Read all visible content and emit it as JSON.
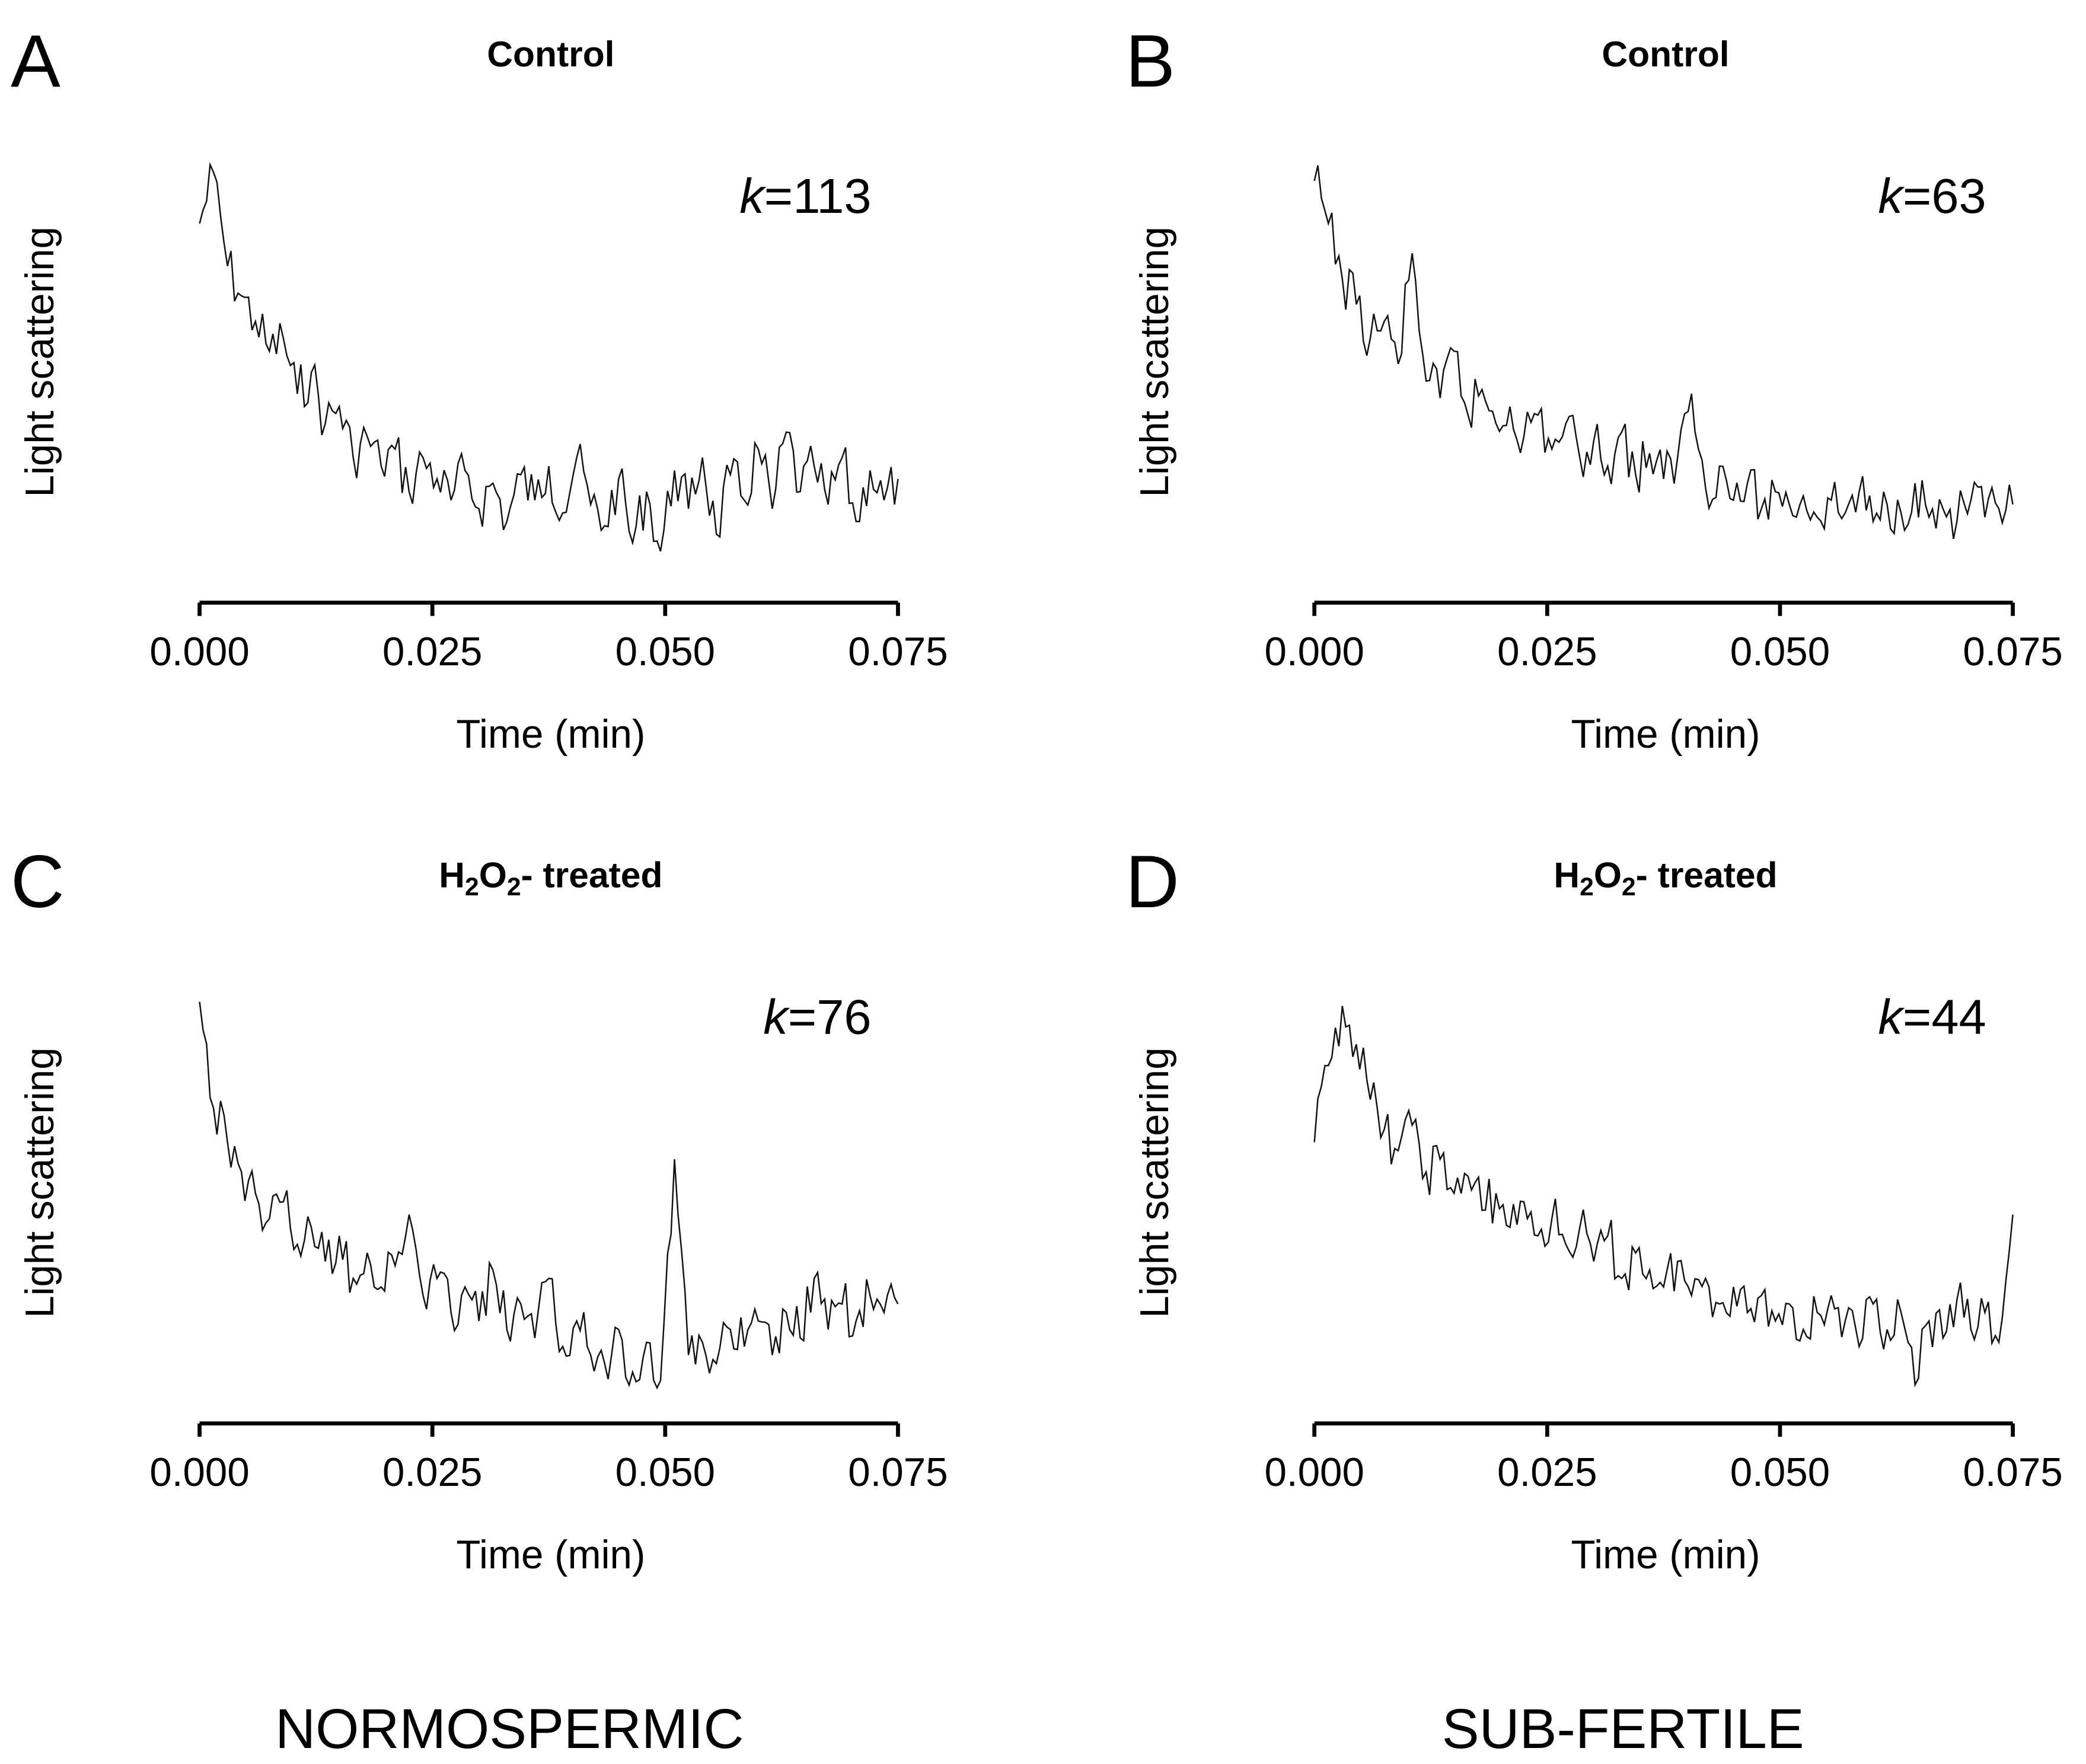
{
  "groups": [
    "NORMOSPERMIC",
    "SUB-FERTILE"
  ],
  "chart_data": [
    {
      "type": "line",
      "panel": "A",
      "group": "NORMOSPERMIC",
      "title": {
        "text": "Control"
      },
      "annotation": {
        "k_label": "k",
        "k_value": "=113"
      },
      "xlabel": "Time (min)",
      "ylabel": "Light scattering",
      "xlim": [
        0,
        0.075
      ],
      "ylim": [
        0,
        1
      ],
      "xticks": [
        "0.000",
        "0.025",
        "0.050",
        "0.075"
      ],
      "values": [
        0.85,
        0.97,
        0.75,
        0.68,
        0.62,
        0.55,
        0.58,
        0.45,
        0.5,
        0.38,
        0.42,
        0.3,
        0.35,
        0.28,
        0.32,
        0.22,
        0.3,
        0.25,
        0.2,
        0.27,
        0.18,
        0.24,
        0.15,
        0.26,
        0.2,
        0.28,
        0.17,
        0.3,
        0.19,
        0.14,
        0.25,
        0.1,
        0.22,
        0.08,
        0.27,
        0.18,
        0.3,
        0.12,
        0.26,
        0.2,
        0.32,
        0.18,
        0.36,
        0.22,
        0.28,
        0.19,
        0.3,
        0.15,
        0.27,
        0.2,
        0.25
      ]
    },
    {
      "type": "line",
      "panel": "B",
      "group": "SUB-FERTILE",
      "title": {
        "text": "Control"
      },
      "annotation": {
        "k_label": "k",
        "k_value": "=63"
      },
      "xlabel": "Time (min)",
      "ylabel": "Light scattering",
      "xlim": [
        0,
        0.075
      ],
      "ylim": [
        0,
        1
      ],
      "xticks": [
        "0.000",
        "0.025",
        "0.050",
        "0.075"
      ],
      "values": [
        0.95,
        0.85,
        0.72,
        0.66,
        0.58,
        0.62,
        0.52,
        0.78,
        0.48,
        0.44,
        0.55,
        0.4,
        0.46,
        0.38,
        0.42,
        0.35,
        0.4,
        0.32,
        0.38,
        0.3,
        0.34,
        0.28,
        0.36,
        0.26,
        0.31,
        0.25,
        0.3,
        0.45,
        0.23,
        0.28,
        0.2,
        0.24,
        0.18,
        0.22,
        0.19,
        0.21,
        0.16,
        0.2,
        0.17,
        0.22,
        0.15,
        0.19,
        0.17,
        0.24,
        0.16,
        0.18,
        0.15,
        0.2,
        0.16,
        0.18,
        0.19
      ]
    },
    {
      "type": "line",
      "panel": "C",
      "group": "NORMOSPERMIC",
      "title": {
        "text": "H2O2- treated",
        "parts": [
          "H",
          "2",
          "O",
          "2",
          "- treated"
        ]
      },
      "annotation": {
        "k_label": "k",
        "k_value": "=76"
      },
      "xlabel": "Time (min)",
      "ylabel": "Light scattering",
      "xlim": [
        0,
        0.075
      ],
      "ylim": [
        0,
        1
      ],
      "xticks": [
        "0.000",
        "0.025",
        "0.050",
        "0.075"
      ],
      "values": [
        0.95,
        0.7,
        0.62,
        0.55,
        0.5,
        0.44,
        0.48,
        0.38,
        0.42,
        0.34,
        0.4,
        0.3,
        0.36,
        0.28,
        0.33,
        0.45,
        0.26,
        0.3,
        0.22,
        0.28,
        0.2,
        0.32,
        0.18,
        0.24,
        0.16,
        0.3,
        0.14,
        0.2,
        0.12,
        0.1,
        0.18,
        0.08,
        0.15,
        0.06,
        0.58,
        0.12,
        0.15,
        0.1,
        0.18,
        0.14,
        0.2,
        0.12,
        0.22,
        0.16,
        0.3,
        0.18,
        0.24,
        0.2,
        0.26,
        0.22,
        0.24
      ]
    },
    {
      "type": "line",
      "panel": "D",
      "group": "SUB-FERTILE",
      "title": {
        "text": "H2O2- treated",
        "parts": [
          "H",
          "2",
          "O",
          "2",
          "- treated"
        ]
      },
      "annotation": {
        "k_label": "k",
        "k_value": "=44"
      },
      "xlabel": "Time (min)",
      "ylabel": "Light scattering",
      "xlim": [
        0,
        0.075
      ],
      "ylim": [
        0,
        1
      ],
      "xticks": [
        "0.000",
        "0.025",
        "0.050",
        "0.075"
      ],
      "values": [
        0.62,
        0.8,
        0.94,
        0.85,
        0.72,
        0.65,
        0.6,
        0.66,
        0.55,
        0.58,
        0.5,
        0.54,
        0.46,
        0.5,
        0.42,
        0.48,
        0.4,
        0.44,
        0.38,
        0.42,
        0.34,
        0.4,
        0.3,
        0.36,
        0.32,
        0.28,
        0.34,
        0.26,
        0.3,
        0.24,
        0.28,
        0.22,
        0.26,
        0.2,
        0.24,
        0.18,
        0.22,
        0.26,
        0.2,
        0.14,
        0.24,
        0.18,
        0.22,
        0.05,
        0.2,
        0.16,
        0.25,
        0.18,
        0.22,
        0.15,
        0.45
      ]
    }
  ]
}
